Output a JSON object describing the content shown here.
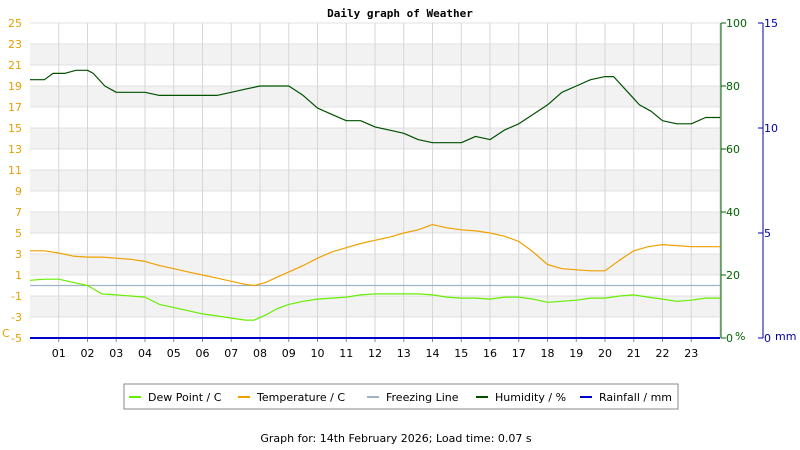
{
  "chart_data": {
    "type": "line",
    "title": "Daily graph of Weather",
    "footer": "Graph for: 14th February 2026; Load time: 0.07 s",
    "x_ticks": [
      "01",
      "02",
      "03",
      "04",
      "05",
      "06",
      "07",
      "08",
      "09",
      "10",
      "11",
      "12",
      "13",
      "14",
      "15",
      "16",
      "17",
      "18",
      "19",
      "20",
      "21",
      "22",
      "23"
    ],
    "x_range": [
      0,
      24
    ],
    "axes": {
      "temperature": {
        "unit": "C",
        "range": [
          -5,
          25
        ],
        "ticks": [
          "-5",
          "-3",
          "-1",
          "1",
          "3",
          "5",
          "7",
          "9",
          "11",
          "13",
          "15",
          "17",
          "19",
          "21",
          "23",
          "25"
        ]
      },
      "humidity": {
        "unit": "%",
        "range": [
          0,
          100
        ],
        "ticks": [
          "0",
          "20",
          "40",
          "60",
          "80",
          "100"
        ]
      },
      "rainfall": {
        "unit": "mm",
        "range": [
          0,
          15
        ],
        "ticks": [
          "0",
          "5",
          "10",
          "15"
        ]
      }
    },
    "series": [
      {
        "name": "Dew Point / C",
        "color": "#66ee00",
        "axis": "temperature",
        "points": [
          [
            0,
            0.5
          ],
          [
            0.5,
            0.6
          ],
          [
            1,
            0.6
          ],
          [
            1.5,
            0.3
          ],
          [
            2,
            0
          ],
          [
            2.5,
            -0.8
          ],
          [
            3,
            -0.9
          ],
          [
            3.5,
            -1
          ],
          [
            4,
            -1.1
          ],
          [
            4.5,
            -1.8
          ],
          [
            5,
            -2.1
          ],
          [
            5.5,
            -2.4
          ],
          [
            6,
            -2.7
          ],
          [
            6.5,
            -2.9
          ],
          [
            7,
            -3.1
          ],
          [
            7.5,
            -3.3
          ],
          [
            7.8,
            -3.3
          ],
          [
            8.2,
            -2.8
          ],
          [
            8.6,
            -2.2
          ],
          [
            9,
            -1.8
          ],
          [
            9.5,
            -1.5
          ],
          [
            10,
            -1.3
          ],
          [
            10.5,
            -1.2
          ],
          [
            11,
            -1.1
          ],
          [
            11.5,
            -0.9
          ],
          [
            12,
            -0.8
          ],
          [
            12.5,
            -0.8
          ],
          [
            13,
            -0.8
          ],
          [
            13.5,
            -0.8
          ],
          [
            14,
            -0.9
          ],
          [
            14.5,
            -1.1
          ],
          [
            15,
            -1.2
          ],
          [
            15.5,
            -1.2
          ],
          [
            16,
            -1.3
          ],
          [
            16.5,
            -1.1
          ],
          [
            17,
            -1.1
          ],
          [
            17.5,
            -1.3
          ],
          [
            18,
            -1.6
          ],
          [
            18.5,
            -1.5
          ],
          [
            19,
            -1.4
          ],
          [
            19.5,
            -1.2
          ],
          [
            20,
            -1.2
          ],
          [
            20.5,
            -1.0
          ],
          [
            21,
            -0.9
          ],
          [
            21.5,
            -1.1
          ],
          [
            22,
            -1.3
          ],
          [
            22.5,
            -1.5
          ],
          [
            23,
            -1.4
          ],
          [
            23.5,
            -1.2
          ],
          [
            24,
            -1.2
          ]
        ]
      },
      {
        "name": "Temperature / C",
        "color": "#f0a000",
        "axis": "temperature",
        "points": [
          [
            0,
            3.3
          ],
          [
            0.5,
            3.3
          ],
          [
            1,
            3.1
          ],
          [
            1.5,
            2.8
          ],
          [
            2,
            2.7
          ],
          [
            2.5,
            2.7
          ],
          [
            3,
            2.6
          ],
          [
            3.5,
            2.5
          ],
          [
            4,
            2.3
          ],
          [
            4.5,
            1.9
          ],
          [
            5,
            1.6
          ],
          [
            5.5,
            1.3
          ],
          [
            6,
            1.0
          ],
          [
            6.5,
            0.7
          ],
          [
            7,
            0.4
          ],
          [
            7.5,
            0.1
          ],
          [
            7.8,
            0.0
          ],
          [
            8.2,
            0.3
          ],
          [
            8.6,
            0.8
          ],
          [
            9,
            1.3
          ],
          [
            9.5,
            1.9
          ],
          [
            10,
            2.6
          ],
          [
            10.5,
            3.2
          ],
          [
            11,
            3.6
          ],
          [
            11.5,
            4.0
          ],
          [
            12,
            4.3
          ],
          [
            12.5,
            4.6
          ],
          [
            13,
            5.0
          ],
          [
            13.5,
            5.3
          ],
          [
            14,
            5.8
          ],
          [
            14.5,
            5.5
          ],
          [
            15,
            5.3
          ],
          [
            15.5,
            5.2
          ],
          [
            16,
            5.0
          ],
          [
            16.5,
            4.7
          ],
          [
            17,
            4.2
          ],
          [
            17.5,
            3.2
          ],
          [
            18,
            2.0
          ],
          [
            18.5,
            1.6
          ],
          [
            19,
            1.5
          ],
          [
            19.5,
            1.4
          ],
          [
            20,
            1.4
          ],
          [
            20.5,
            2.4
          ],
          [
            21,
            3.3
          ],
          [
            21.5,
            3.7
          ],
          [
            22,
            3.9
          ],
          [
            22.5,
            3.8
          ],
          [
            23,
            3.7
          ],
          [
            24,
            3.7
          ]
        ]
      },
      {
        "name": "Freezing Line",
        "color": "#a0b4c8",
        "axis": "temperature",
        "points": [
          [
            0,
            0
          ],
          [
            24,
            0
          ]
        ]
      },
      {
        "name": "Humidity / %",
        "color": "#005000",
        "axis": "humidity",
        "points": [
          [
            0,
            82
          ],
          [
            0.5,
            82
          ],
          [
            0.8,
            84
          ],
          [
            1.2,
            84
          ],
          [
            1.6,
            85
          ],
          [
            2,
            85
          ],
          [
            2.2,
            84
          ],
          [
            2.6,
            80
          ],
          [
            3,
            78
          ],
          [
            3.5,
            78
          ],
          [
            4,
            78
          ],
          [
            4.5,
            77
          ],
          [
            5,
            77
          ],
          [
            5.5,
            77
          ],
          [
            6,
            77
          ],
          [
            6.5,
            77
          ],
          [
            7,
            78
          ],
          [
            7.5,
            79
          ],
          [
            8,
            80
          ],
          [
            8.5,
            80
          ],
          [
            9,
            80
          ],
          [
            9.5,
            77
          ],
          [
            10,
            73
          ],
          [
            10.5,
            71
          ],
          [
            11,
            69
          ],
          [
            11.5,
            69
          ],
          [
            12,
            67
          ],
          [
            12.5,
            66
          ],
          [
            13,
            65
          ],
          [
            13.5,
            63
          ],
          [
            14,
            62
          ],
          [
            14.5,
            62
          ],
          [
            15,
            62
          ],
          [
            15.5,
            64
          ],
          [
            16,
            63
          ],
          [
            16.5,
            66
          ],
          [
            17,
            68
          ],
          [
            17.5,
            71
          ],
          [
            18,
            74
          ],
          [
            18.5,
            78
          ],
          [
            19,
            80
          ],
          [
            19.5,
            82
          ],
          [
            20,
            83
          ],
          [
            20.3,
            83
          ],
          [
            20.8,
            78
          ],
          [
            21.2,
            74
          ],
          [
            21.6,
            72
          ],
          [
            22,
            69
          ],
          [
            22.5,
            68
          ],
          [
            23,
            68
          ],
          [
            23.5,
            70
          ],
          [
            24,
            70
          ]
        ]
      },
      {
        "name": "Rainfall / mm",
        "color": "#0000cc",
        "axis": "rainfall",
        "points": [
          [
            0,
            0
          ],
          [
            24,
            0
          ]
        ]
      }
    ],
    "legend_placement": "bottom",
    "grid": true
  }
}
